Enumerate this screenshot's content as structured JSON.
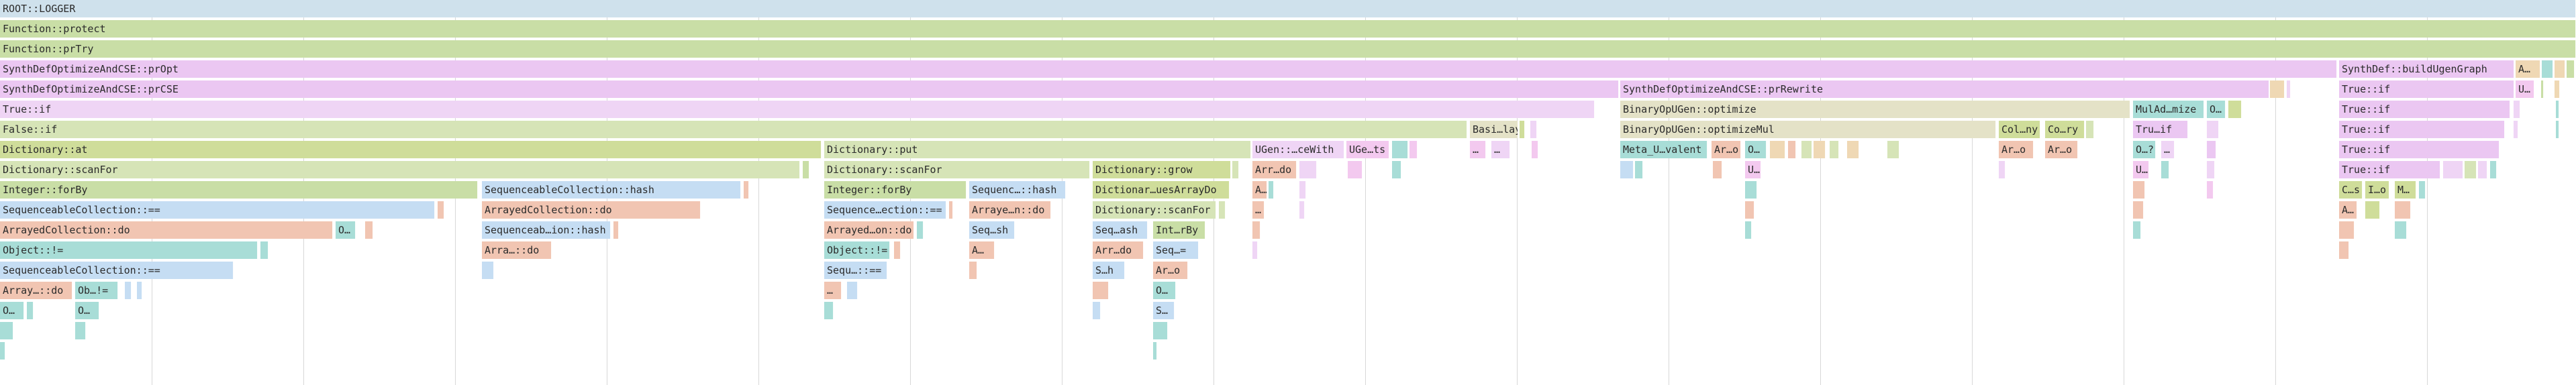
{
  "palette": {
    "blue": "#cfe1ec",
    "green": "#c9dea6",
    "green2": "#d6e4b7",
    "purple": "#ebc7f2",
    "purple2": "#efd5f5",
    "beige": "#e4e2c7",
    "olive": "#cfdd9a",
    "salmon": "#f1c5b2",
    "teal": "#a8ddd7",
    "lightblue": "#c5ddf3",
    "pink": "#f3c9ef",
    "sand": "#efd8b4"
  },
  "frames": [
    {
      "label": "ROOT::LOGGER",
      "c": "blue",
      "row": 0,
      "s": 0,
      "e": 3838
    },
    {
      "label": "Function::protect",
      "c": "green",
      "row": 1,
      "s": 0,
      "e": 3838
    },
    {
      "label": "Function::prTry",
      "c": "green",
      "row": 2,
      "s": 0,
      "e": 3838
    },
    {
      "label": "SynthDefOptimizeAndCSE::prOpt",
      "c": "purple",
      "row": 3,
      "s": 0,
      "e": 3482
    },
    {
      "label": "SynthDef::buildUgenGraph",
      "c": "purple",
      "row": 3,
      "s": 3485,
      "e": 3746
    },
    {
      "label": "A…",
      "c": "sand",
      "row": 3,
      "s": 3748,
      "e": 3785
    },
    {
      "label": "",
      "c": "teal",
      "row": 3,
      "s": 3787,
      "e": 3804
    },
    {
      "label": "",
      "c": "sand",
      "row": 3,
      "s": 3806,
      "e": 3822
    },
    {
      "label": "",
      "c": "green",
      "row": 3,
      "s": 3824,
      "e": 3836
    },
    {
      "label": "SynthDefOptimizeAndCSE::prCSE",
      "c": "purple",
      "row": 4,
      "s": 0,
      "e": 2412
    },
    {
      "label": "SynthDefOptimizeAndCSE::prRewrite",
      "c": "purple",
      "row": 4,
      "s": 2414,
      "e": 3381
    },
    {
      "label": "",
      "c": "sand",
      "row": 4,
      "s": 3382,
      "e": 3404
    },
    {
      "label": "",
      "c": "purple2",
      "row": 4,
      "s": 3407,
      "e": 3413
    },
    {
      "label": "True::if",
      "c": "purple",
      "row": 4,
      "s": 3485,
      "e": 3746
    },
    {
      "label": "U…",
      "c": "pink",
      "row": 4,
      "s": 3748,
      "e": 3776
    },
    {
      "label": "",
      "c": "green",
      "row": 4,
      "s": 3786,
      "e": 3790
    },
    {
      "label": "",
      "c": "sand",
      "row": 4,
      "s": 3806,
      "e": 3814
    },
    {
      "label": "True::if",
      "c": "purple2",
      "row": 5,
      "s": 0,
      "e": 2376
    },
    {
      "label": "BinaryOpUGen::optimize",
      "c": "beige",
      "row": 5,
      "s": 2414,
      "e": 3174
    },
    {
      "label": "MulAd…mize",
      "c": "teal",
      "row": 5,
      "s": 3178,
      "e": 3284
    },
    {
      "label": "O…",
      "c": "teal",
      "row": 5,
      "s": 3288,
      "e": 3316
    },
    {
      "label": "",
      "c": "olive",
      "row": 5,
      "s": 3320,
      "e": 3340
    },
    {
      "label": "True::if",
      "c": "purple",
      "row": 5,
      "s": 3485,
      "e": 3740
    },
    {
      "label": "",
      "c": "purple2",
      "row": 5,
      "s": 3745,
      "e": 3755
    },
    {
      "label": "",
      "c": "teal",
      "row": 5,
      "s": 3808,
      "e": 3813
    },
    {
      "label": "False::if",
      "c": "green2",
      "row": 6,
      "s": 0,
      "e": 2186
    },
    {
      "label": "Basi…lay",
      "c": "beige",
      "row": 6,
      "s": 2190,
      "e": 2262
    },
    {
      "label": "",
      "c": "olive",
      "row": 6,
      "s": 2264,
      "e": 2272
    },
    {
      "label": "",
      "c": "purple2",
      "row": 6,
      "s": 2280,
      "e": 2290
    },
    {
      "label": "BinaryOpUGen::optimizeMul",
      "c": "beige",
      "row": 6,
      "s": 2414,
      "e": 2974
    },
    {
      "label": "Col…ny",
      "c": "olive",
      "row": 6,
      "s": 2978,
      "e": 3040
    },
    {
      "label": "Co…ry",
      "c": "olive",
      "row": 6,
      "s": 3047,
      "e": 3106
    },
    {
      "label": "",
      "c": "green2",
      "row": 6,
      "s": 3108,
      "e": 3120
    },
    {
      "label": "Tru…if",
      "c": "purple",
      "row": 6,
      "s": 3178,
      "e": 3260
    },
    {
      "label": "",
      "c": "purple2",
      "row": 6,
      "s": 3288,
      "e": 3306
    },
    {
      "label": "True::if",
      "c": "purple",
      "row": 6,
      "s": 3485,
      "e": 3732
    },
    {
      "label": "",
      "c": "purple2",
      "row": 6,
      "s": 3745,
      "e": 3752
    },
    {
      "label": "",
      "c": "teal",
      "row": 6,
      "s": 3808,
      "e": 3813
    },
    {
      "label": "Dictionary::at",
      "c": "olive",
      "row": 7,
      "s": 0,
      "e": 1224
    },
    {
      "label": "Dictionary::put",
      "c": "green2",
      "row": 7,
      "s": 1228,
      "e": 1864
    },
    {
      "label": "UGen::…ceWith",
      "c": "purple2",
      "row": 7,
      "s": 1866,
      "e": 2003
    },
    {
      "label": "UGe…ts",
      "c": "pink",
      "row": 7,
      "s": 2006,
      "e": 2070
    },
    {
      "label": "",
      "c": "teal",
      "row": 7,
      "s": 2074,
      "e": 2098
    },
    {
      "label": "",
      "c": "pink",
      "row": 7,
      "s": 2100,
      "e": 2112
    },
    {
      "label": "…",
      "c": "pink",
      "row": 7,
      "s": 2190,
      "e": 2214
    },
    {
      "label": "…",
      "c": "purple2",
      "row": 7,
      "s": 2222,
      "e": 2250
    },
    {
      "label": "",
      "c": "pink",
      "row": 7,
      "s": 2282,
      "e": 2292
    },
    {
      "label": "Meta_U…valent",
      "c": "teal",
      "row": 7,
      "s": 2414,
      "e": 2544
    },
    {
      "label": "Ar…o",
      "c": "salmon",
      "row": 7,
      "s": 2550,
      "e": 2594
    },
    {
      "label": "O…",
      "c": "teal",
      "row": 7,
      "s": 2600,
      "e": 2632
    },
    {
      "label": "",
      "c": "sand",
      "row": 7,
      "s": 2637,
      "e": 2660
    },
    {
      "label": "",
      "c": "salmon",
      "row": 7,
      "s": 2664,
      "e": 2676
    },
    {
      "label": "",
      "c": "green2",
      "row": 7,
      "s": 2684,
      "e": 2700
    },
    {
      "label": "",
      "c": "sand",
      "row": 7,
      "s": 2702,
      "e": 2720
    },
    {
      "label": "",
      "c": "green2",
      "row": 7,
      "s": 2726,
      "e": 2740
    },
    {
      "label": "",
      "c": "sand",
      "row": 7,
      "s": 2752,
      "e": 2770
    },
    {
      "label": "",
      "c": "green2",
      "row": 7,
      "s": 2812,
      "e": 2830
    },
    {
      "label": "Ar…o",
      "c": "salmon",
      "row": 7,
      "s": 2978,
      "e": 3030
    },
    {
      "label": "Ar…o",
      "c": "salmon",
      "row": 7,
      "s": 3047,
      "e": 3096
    },
    {
      "label": "O…?",
      "c": "teal",
      "row": 7,
      "s": 3178,
      "e": 3212
    },
    {
      "label": "…",
      "c": "purple2",
      "row": 7,
      "s": 3220,
      "e": 3240
    },
    {
      "label": "",
      "c": "purple",
      "row": 7,
      "s": 3288,
      "e": 3302
    },
    {
      "label": "True::if",
      "c": "purple",
      "row": 7,
      "s": 3485,
      "e": 3724
    },
    {
      "label": "Dictionary::scanFor",
      "c": "green2",
      "row": 8,
      "s": 0,
      "e": 1192
    },
    {
      "label": "",
      "c": "green",
      "row": 8,
      "s": 1196,
      "e": 1206
    },
    {
      "label": "Dictionary::scanFor",
      "c": "green2",
      "row": 8,
      "s": 1228,
      "e": 1624
    },
    {
      "label": "Dictionary::grow",
      "c": "olive",
      "row": 8,
      "s": 1628,
      "e": 1834
    },
    {
      "label": "",
      "c": "green2",
      "row": 8,
      "s": 1836,
      "e": 1846
    },
    {
      "label": "Arr…do",
      "c": "salmon",
      "row": 8,
      "s": 1866,
      "e": 1932
    },
    {
      "label": "",
      "c": "purple2",
      "row": 8,
      "s": 1936,
      "e": 1962
    },
    {
      "label": "",
      "c": "pink",
      "row": 8,
      "s": 2008,
      "e": 2030
    },
    {
      "label": "",
      "c": "teal",
      "row": 8,
      "s": 2074,
      "e": 2088
    },
    {
      "label": "",
      "c": "lightblue",
      "row": 8,
      "s": 2414,
      "e": 2434
    },
    {
      "label": "",
      "c": "teal",
      "row": 8,
      "s": 2436,
      "e": 2448
    },
    {
      "label": "",
      "c": "salmon",
      "row": 8,
      "s": 2552,
      "e": 2566
    },
    {
      "label": "U…",
      "c": "pink",
      "row": 8,
      "s": 2600,
      "e": 2624
    },
    {
      "label": "",
      "c": "purple2",
      "row": 8,
      "s": 2978,
      "e": 2988
    },
    {
      "label": "U…",
      "c": "pink",
      "row": 8,
      "s": 3178,
      "e": 3202
    },
    {
      "label": "",
      "c": "teal",
      "row": 8,
      "s": 3220,
      "e": 3232
    },
    {
      "label": "",
      "c": "purple2",
      "row": 8,
      "s": 3288,
      "e": 3300
    },
    {
      "label": "True::if",
      "c": "purple",
      "row": 8,
      "s": 3485,
      "e": 3636
    },
    {
      "label": "",
      "c": "purple2",
      "row": 8,
      "s": 3640,
      "e": 3670
    },
    {
      "label": "",
      "c": "green2",
      "row": 8,
      "s": 3672,
      "e": 3690
    },
    {
      "label": "",
      "c": "purple2",
      "row": 8,
      "s": 3692,
      "e": 3706
    },
    {
      "label": "",
      "c": "teal",
      "row": 8,
      "s": 3710,
      "e": 3720
    },
    {
      "label": "Integer::forBy",
      "c": "green",
      "row": 9,
      "s": 0,
      "e": 712
    },
    {
      "label": "SequenceableCollection::hash",
      "c": "lightblue",
      "row": 9,
      "s": 718,
      "e": 1104
    },
    {
      "label": "",
      "c": "salmon",
      "row": 9,
      "s": 1108,
      "e": 1116
    },
    {
      "label": "Integer::forBy",
      "c": "green",
      "row": 9,
      "s": 1228,
      "e": 1440
    },
    {
      "label": "Sequenc…::hash",
      "c": "lightblue",
      "row": 9,
      "s": 1444,
      "e": 1588
    },
    {
      "label": "Dictionar…uesArrayDo",
      "c": "olive",
      "row": 9,
      "s": 1628,
      "e": 1832
    },
    {
      "label": "A…",
      "c": "salmon",
      "row": 9,
      "s": 1866,
      "e": 1888
    },
    {
      "label": "",
      "c": "teal",
      "row": 9,
      "s": 1890,
      "e": 1898
    },
    {
      "label": "",
      "c": "purple2",
      "row": 9,
      "s": 1936,
      "e": 1946
    },
    {
      "label": "",
      "c": "teal",
      "row": 9,
      "s": 2600,
      "e": 2618
    },
    {
      "label": "",
      "c": "salmon",
      "row": 9,
      "s": 3178,
      "e": 3196
    },
    {
      "label": "",
      "c": "pink",
      "row": 9,
      "s": 3288,
      "e": 3298
    },
    {
      "label": "C…s",
      "c": "olive",
      "row": 9,
      "s": 3485,
      "e": 3520
    },
    {
      "label": "I…o",
      "c": "olive",
      "row": 9,
      "s": 3524,
      "e": 3560
    },
    {
      "label": "M…",
      "c": "olive",
      "row": 9,
      "s": 3568,
      "e": 3600
    },
    {
      "label": "",
      "c": "teal",
      "row": 9,
      "s": 3604,
      "e": 3614
    },
    {
      "label": "SequenceableCollection::==",
      "c": "lightblue",
      "row": 10,
      "s": 0,
      "e": 648
    },
    {
      "label": "",
      "c": "salmon",
      "row": 10,
      "s": 652,
      "e": 662
    },
    {
      "label": "ArrayedCollection::do",
      "c": "salmon",
      "row": 10,
      "s": 718,
      "e": 1044
    },
    {
      "label": "Sequence…ection::==",
      "c": "lightblue",
      "row": 10,
      "s": 1228,
      "e": 1410
    },
    {
      "label": "",
      "c": "salmon",
      "row": 10,
      "s": 1414,
      "e": 1420
    },
    {
      "label": "Arraye…n::do",
      "c": "salmon",
      "row": 10,
      "s": 1444,
      "e": 1566
    },
    {
      "label": "Dictionary::scanFor",
      "c": "green2",
      "row": 10,
      "s": 1628,
      "e": 1812
    },
    {
      "label": "",
      "c": "green2",
      "row": 10,
      "s": 1816,
      "e": 1826
    },
    {
      "label": "…",
      "c": "salmon",
      "row": 10,
      "s": 1866,
      "e": 1884
    },
    {
      "label": "",
      "c": "purple2",
      "row": 10,
      "s": 1936,
      "e": 1944
    },
    {
      "label": "",
      "c": "salmon",
      "row": 10,
      "s": 2600,
      "e": 2614
    },
    {
      "label": "",
      "c": "salmon",
      "row": 10,
      "s": 3178,
      "e": 3194
    },
    {
      "label": "A…",
      "c": "salmon",
      "row": 10,
      "s": 3485,
      "e": 3512
    },
    {
      "label": "",
      "c": "olive",
      "row": 10,
      "s": 3524,
      "e": 3546
    },
    {
      "label": "",
      "c": "salmon",
      "row": 10,
      "s": 3568,
      "e": 3592
    },
    {
      "label": "ArrayedCollection::do",
      "c": "salmon",
      "row": 11,
      "s": 0,
      "e": 496
    },
    {
      "label": "O…",
      "c": "teal",
      "row": 11,
      "s": 500,
      "e": 530
    },
    {
      "label": "",
      "c": "salmon",
      "row": 11,
      "s": 544,
      "e": 556
    },
    {
      "label": "Sequenceab…ion::hash",
      "c": "lightblue",
      "row": 11,
      "s": 718,
      "e": 910
    },
    {
      "label": "",
      "c": "salmon",
      "row": 11,
      "s": 914,
      "e": 922
    },
    {
      "label": "Arrayed…on::do",
      "c": "salmon",
      "row": 11,
      "s": 1228,
      "e": 1362
    },
    {
      "label": "",
      "c": "teal",
      "row": 11,
      "s": 1366,
      "e": 1376
    },
    {
      "label": "Seq…sh",
      "c": "lightblue",
      "row": 11,
      "s": 1444,
      "e": 1512
    },
    {
      "label": "Seq…ash",
      "c": "lightblue",
      "row": 11,
      "s": 1628,
      "e": 1710
    },
    {
      "label": "Int…rBy",
      "c": "green",
      "row": 11,
      "s": 1718,
      "e": 1796
    },
    {
      "label": "",
      "c": "salmon",
      "row": 11,
      "s": 1866,
      "e": 1878
    },
    {
      "label": "",
      "c": "teal",
      "row": 11,
      "s": 2600,
      "e": 2610
    },
    {
      "label": "",
      "c": "teal",
      "row": 11,
      "s": 3178,
      "e": 3190
    },
    {
      "label": "",
      "c": "salmon",
      "row": 11,
      "s": 3485,
      "e": 3508
    },
    {
      "label": "",
      "c": "teal",
      "row": 11,
      "s": 3568,
      "e": 3586
    },
    {
      "label": "Object::!=",
      "c": "teal",
      "row": 12,
      "s": 0,
      "e": 384
    },
    {
      "label": "",
      "c": "teal",
      "row": 12,
      "s": 388,
      "e": 400
    },
    {
      "label": "Arra…::do",
      "c": "salmon",
      "row": 12,
      "s": 718,
      "e": 822
    },
    {
      "label": "Object::!=",
      "c": "teal",
      "row": 12,
      "s": 1228,
      "e": 1326
    },
    {
      "label": "",
      "c": "salmon",
      "row": 12,
      "s": 1332,
      "e": 1342
    },
    {
      "label": "A…",
      "c": "salmon",
      "row": 12,
      "s": 1444,
      "e": 1482
    },
    {
      "label": "Arr…do",
      "c": "salmon",
      "row": 12,
      "s": 1628,
      "e": 1704
    },
    {
      "label": "Seq…=",
      "c": "lightblue",
      "row": 12,
      "s": 1718,
      "e": 1786
    },
    {
      "label": "",
      "c": "purple2",
      "row": 12,
      "s": 1866,
      "e": 1874
    },
    {
      "label": "",
      "c": "salmon",
      "row": 12,
      "s": 3485,
      "e": 3500
    },
    {
      "label": "SequenceableCollection::==",
      "c": "lightblue",
      "row": 13,
      "s": 0,
      "e": 348
    },
    {
      "label": "",
      "c": "lightblue",
      "row": 13,
      "s": 718,
      "e": 736
    },
    {
      "label": "Sequ…::==",
      "c": "lightblue",
      "row": 13,
      "s": 1228,
      "e": 1322
    },
    {
      "label": "",
      "c": "salmon",
      "row": 13,
      "s": 1444,
      "e": 1456
    },
    {
      "label": "S…h",
      "c": "lightblue",
      "row": 13,
      "s": 1628,
      "e": 1676
    },
    {
      "label": "Ar…o",
      "c": "salmon",
      "row": 13,
      "s": 1718,
      "e": 1770
    },
    {
      "label": "Array…::do",
      "c": "salmon",
      "row": 14,
      "s": 0,
      "e": 108
    },
    {
      "label": "Ob…!=",
      "c": "teal",
      "row": 14,
      "s": 112,
      "e": 176
    },
    {
      "label": "",
      "c": "lightblue",
      "row": 14,
      "s": 186,
      "e": 196
    },
    {
      "label": "",
      "c": "lightblue",
      "row": 14,
      "s": 204,
      "e": 212
    },
    {
      "label": "…",
      "c": "salmon",
      "row": 14,
      "s": 1228,
      "e": 1254
    },
    {
      "label": "",
      "c": "lightblue",
      "row": 14,
      "s": 1262,
      "e": 1278
    },
    {
      "label": "",
      "c": "salmon",
      "row": 14,
      "s": 1628,
      "e": 1652
    },
    {
      "label": "O…",
      "c": "teal",
      "row": 14,
      "s": 1718,
      "e": 1752
    },
    {
      "label": "O…",
      "c": "teal",
      "row": 15,
      "s": 0,
      "e": 36
    },
    {
      "label": "",
      "c": "teal",
      "row": 15,
      "s": 40,
      "e": 50
    },
    {
      "label": "O…",
      "c": "teal",
      "row": 15,
      "s": 112,
      "e": 148
    },
    {
      "label": "",
      "c": "teal",
      "row": 15,
      "s": 1228,
      "e": 1242
    },
    {
      "label": "",
      "c": "lightblue",
      "row": 15,
      "s": 1628,
      "e": 1640
    },
    {
      "label": "S…",
      "c": "lightblue",
      "row": 15,
      "s": 1718,
      "e": 1750
    },
    {
      "label": "",
      "c": "teal",
      "row": 16,
      "s": 0,
      "e": 20
    },
    {
      "label": "",
      "c": "teal",
      "row": 16,
      "s": 112,
      "e": 128
    },
    {
      "label": "",
      "c": "teal",
      "row": 16,
      "s": 1718,
      "e": 1740
    },
    {
      "label": "",
      "c": "teal",
      "row": 17,
      "s": 0,
      "e": 8
    },
    {
      "label": "",
      "c": "teal",
      "row": 17,
      "s": 1718,
      "e": 1724
    }
  ]
}
